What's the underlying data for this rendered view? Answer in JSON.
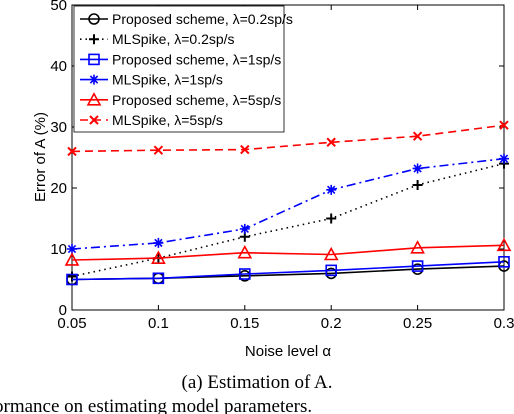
{
  "chart_data": {
    "type": "line",
    "title": "",
    "xlabel": "Noise level α",
    "ylabel": "Error of A (%)",
    "xlim": [
      0.05,
      0.3
    ],
    "ylim": [
      0,
      50
    ],
    "x_ticks": [
      "0.05",
      "0.1",
      "0.15",
      "0.2",
      "0.25",
      "0.3"
    ],
    "y_ticks": [
      "0",
      "10",
      "20",
      "30",
      "40",
      "50"
    ],
    "grid": false,
    "legend_position": "top-left",
    "x": [
      0.05,
      0.1,
      0.15,
      0.2,
      0.25,
      0.3
    ],
    "series": [
      {
        "name": "Proposed scheme, λ=0.2sp/s",
        "values": [
          5.0,
          5.2,
          5.6,
          6.0,
          6.7,
          7.2
        ],
        "color": "#000000",
        "dash": "solid",
        "marker": "circle"
      },
      {
        "name": "MLSpike, λ=0.2sp/s",
        "values": [
          5.5,
          8.5,
          12.0,
          15.0,
          20.5,
          24.0
        ],
        "color": "#000000",
        "dash": "dotted",
        "marker": "plus"
      },
      {
        "name": "Proposed scheme, λ=1sp/s",
        "values": [
          5.0,
          5.2,
          5.9,
          6.5,
          7.2,
          7.9
        ],
        "color": "#0000ff",
        "dash": "solid",
        "marker": "square"
      },
      {
        "name": "MLSpike, λ=1sp/s",
        "values": [
          10.0,
          11.0,
          13.3,
          19.7,
          23.2,
          24.8
        ],
        "color": "#0000ff",
        "dash": "dashdot",
        "marker": "asterisk"
      },
      {
        "name": "Proposed scheme, λ=5sp/s",
        "values": [
          8.2,
          8.5,
          9.4,
          9.1,
          10.2,
          10.6
        ],
        "color": "#ff0000",
        "dash": "solid",
        "marker": "triangle"
      },
      {
        "name": "MLSpike, λ=5sp/s",
        "values": [
          26.0,
          26.2,
          26.3,
          27.5,
          28.5,
          30.3
        ],
        "color": "#ff0000",
        "dash": "dashed",
        "marker": "x"
      }
    ]
  },
  "caption": {
    "line1": "(a) Estimation of A.",
    "line2": "ormance on estimating model parameters."
  }
}
